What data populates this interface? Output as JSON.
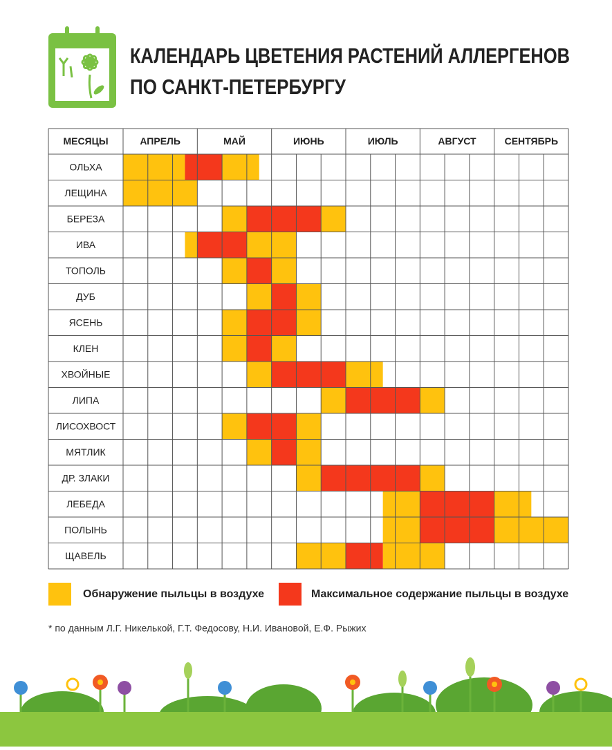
{
  "header": {
    "title_lines": [
      "КАЛЕНДАРЬ ЦВЕТЕНИЯ РАСТЕНИЙ АЛЛЕРГЕНОВ",
      "ПО САНКТ-ПЕТЕРБУРГУ"
    ]
  },
  "table": {
    "corner": "МЕСЯЦЫ",
    "months": [
      "АПРЕЛЬ",
      "МАЙ",
      "ИЮНЬ",
      "ИЮЛЬ",
      "АВГУСТ",
      "СЕНТЯБРЬ"
    ],
    "rows": [
      {
        "name": "ОЛЬХА",
        "detection": [
          [
            0,
            2.5
          ],
          [
            4,
            5.5
          ]
        ],
        "maximum": [
          [
            2.5,
            4
          ]
        ]
      },
      {
        "name": "ЛЕЩИНА",
        "detection": [
          [
            0,
            3
          ]
        ],
        "maximum": []
      },
      {
        "name": "БЕРЕЗА",
        "detection": [
          [
            4,
            5
          ],
          [
            8,
            9
          ]
        ],
        "maximum": [
          [
            5,
            8
          ]
        ]
      },
      {
        "name": "ИВА",
        "detection": [
          [
            2.5,
            3
          ],
          [
            5,
            7
          ]
        ],
        "maximum": [
          [
            3,
            5
          ]
        ]
      },
      {
        "name": "ТОПОЛЬ",
        "detection": [
          [
            4,
            5
          ],
          [
            6,
            7
          ]
        ],
        "maximum": [
          [
            5,
            6
          ]
        ]
      },
      {
        "name": "ДУБ",
        "detection": [
          [
            5,
            6
          ],
          [
            7,
            8
          ]
        ],
        "maximum": [
          [
            6,
            7
          ]
        ]
      },
      {
        "name": "ЯСЕНЬ",
        "detection": [
          [
            4,
            5
          ],
          [
            7,
            8
          ]
        ],
        "maximum": [
          [
            5,
            7
          ]
        ]
      },
      {
        "name": "КЛЕН",
        "detection": [
          [
            4,
            5
          ],
          [
            6,
            7
          ]
        ],
        "maximum": [
          [
            5,
            6
          ]
        ]
      },
      {
        "name": "ХВОЙНЫЕ",
        "detection": [
          [
            5,
            6
          ],
          [
            9,
            10.5
          ]
        ],
        "maximum": [
          [
            6,
            9
          ]
        ]
      },
      {
        "name": "ЛИПА",
        "detection": [
          [
            8,
            9
          ],
          [
            12,
            13
          ]
        ],
        "maximum": [
          [
            9,
            12
          ]
        ]
      },
      {
        "name": "ЛИСОХВОСТ",
        "detection": [
          [
            4,
            5
          ],
          [
            7,
            8
          ]
        ],
        "maximum": [
          [
            5,
            7
          ]
        ]
      },
      {
        "name": "МЯТЛИК",
        "detection": [
          [
            5,
            6
          ],
          [
            7,
            8
          ]
        ],
        "maximum": [
          [
            6,
            7
          ]
        ]
      },
      {
        "name": "ДР. ЗЛАКИ",
        "detection": [
          [
            7,
            8
          ],
          [
            12,
            13
          ]
        ],
        "maximum": [
          [
            8,
            12
          ]
        ]
      },
      {
        "name": "ЛЕБЕДА",
        "detection": [
          [
            10.5,
            12
          ],
          [
            15,
            16.5
          ]
        ],
        "maximum": [
          [
            12,
            15
          ]
        ]
      },
      {
        "name": "ПОЛЫНЬ",
        "detection": [
          [
            10.5,
            12
          ],
          [
            15,
            18
          ]
        ],
        "maximum": [
          [
            12,
            15
          ]
        ]
      },
      {
        "name": "ЩАВЕЛЬ",
        "detection": [
          [
            7,
            9
          ],
          [
            10.5,
            13
          ]
        ],
        "maximum": [
          [
            9,
            10.5
          ]
        ]
      }
    ]
  },
  "legend": {
    "detection": {
      "label": "Обнаружение пыльцы в воздухе",
      "color": "#ffc20e"
    },
    "maximum": {
      "label": "Максимальное содержание пыльцы в воздухе",
      "color": "#f4381c"
    }
  },
  "footnote": "* по данным Л.Г. Никелькой, Г.Т. Федосову, Н.И. Ивановой, Е.Ф. Рыжих"
}
